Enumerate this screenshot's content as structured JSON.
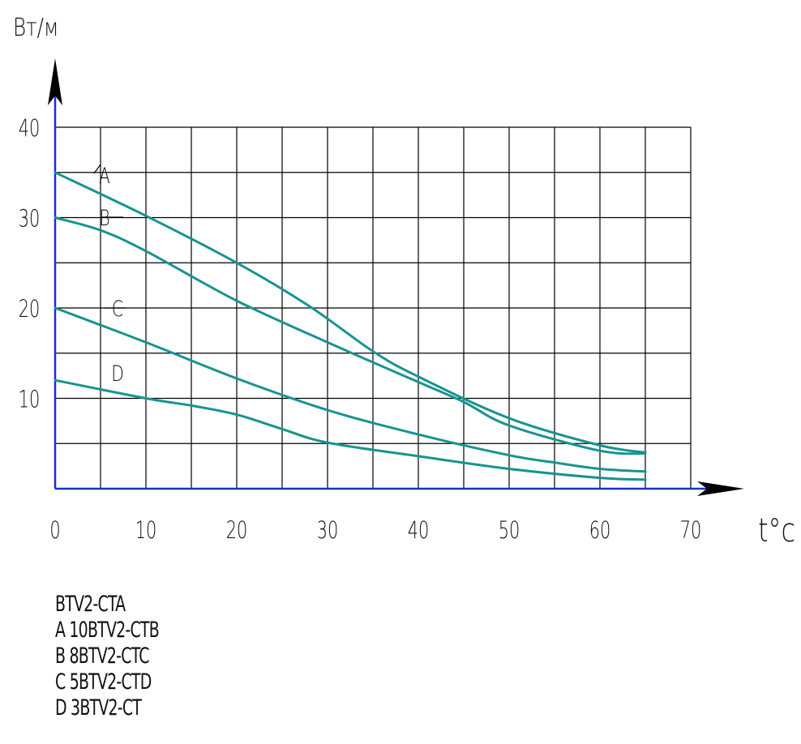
{
  "chart_data": {
    "type": "line",
    "ylabel": "Вт/м",
    "xlabel": "t°c",
    "xlim": [
      0,
      70
    ],
    "ylim": [
      0,
      40
    ],
    "x_ticks": [
      "0",
      "10",
      "20",
      "30",
      "40",
      "50",
      "60",
      "70"
    ],
    "y_ticks": [
      "10",
      "20",
      "30",
      "40"
    ],
    "grid": true,
    "line_color": "#17948f",
    "axis_color": "#1a2fd6",
    "grid_color": "#000000",
    "series": [
      {
        "name": "A",
        "x": [
          0,
          10,
          20,
          28,
          35,
          40,
          50,
          60,
          65
        ],
        "y": [
          35,
          30.2,
          25,
          20.2,
          15.2,
          12.4,
          7.8,
          4.8,
          4
        ]
      },
      {
        "name": "B",
        "x": [
          0,
          5,
          10,
          20,
          30,
          40,
          45,
          50,
          60,
          65
        ],
        "y": [
          30,
          28.6,
          26.3,
          20.8,
          16.2,
          11.8,
          9.6,
          7,
          4.2,
          3.9
        ]
      },
      {
        "name": "C",
        "x": [
          0,
          10,
          20,
          30,
          40,
          50,
          55,
          60,
          65
        ],
        "y": [
          20,
          16.2,
          12.2,
          8.7,
          6,
          3.7,
          2.9,
          2.2,
          1.9
        ]
      },
      {
        "name": "D",
        "x": [
          0,
          10,
          15,
          20,
          25,
          30,
          40,
          50,
          60,
          65
        ],
        "y": [
          12,
          10,
          9.2,
          8.2,
          6.6,
          5.1,
          3.6,
          2.2,
          1.2,
          1
        ]
      }
    ],
    "legend_title": "BTV2-CTA",
    "legend": [
      "A 10BTV2-CTB",
      "B 8BTV2-CTC",
      "C 5BTV2-CTD",
      "D 3BTV2-CT"
    ]
  }
}
